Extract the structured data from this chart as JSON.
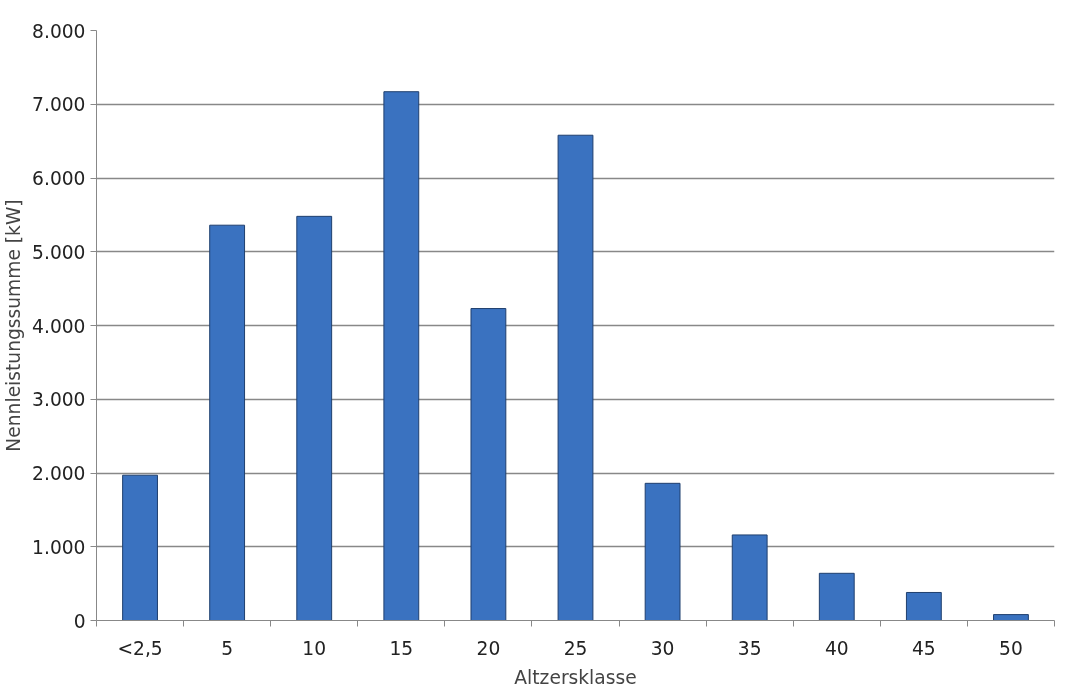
{
  "chart_data": {
    "type": "bar",
    "xlabel": "Altzersklasse",
    "ylabel": "Nennleistungssumme [kW]",
    "categories": [
      "<2,5",
      "5",
      "10",
      "15",
      "20",
      "25",
      "30",
      "35",
      "40",
      "45",
      "50"
    ],
    "values": [
      1970,
      5360,
      5480,
      7170,
      4230,
      6580,
      1860,
      1160,
      640,
      380,
      80
    ],
    "color": "#3a72c0",
    "ylim": [
      0,
      8000
    ],
    "yticks": [
      {
        "value": 0,
        "label": "0"
      },
      {
        "value": 1000,
        "label": "1.000"
      },
      {
        "value": 2000,
        "label": "2.000"
      },
      {
        "value": 3000,
        "label": "3.000"
      },
      {
        "value": 4000,
        "label": "4.000"
      },
      {
        "value": 5000,
        "label": "5.000"
      },
      {
        "value": 6000,
        "label": "6.000"
      },
      {
        "value": 7000,
        "label": "7.000"
      },
      {
        "value": 8000,
        "label": "8.000"
      }
    ],
    "grid": "y"
  }
}
